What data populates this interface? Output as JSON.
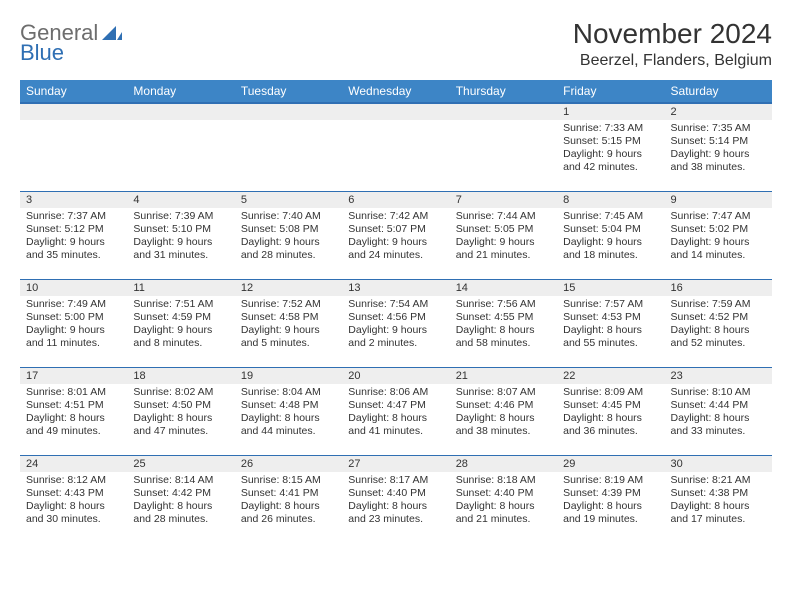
{
  "logo": {
    "text1": "General",
    "text2": "Blue"
  },
  "title": {
    "month": "November 2024",
    "location": "Beerzel, Flanders, Belgium"
  },
  "colors": {
    "header_bg": "#3d85c6",
    "header_border": "#2f6fb3",
    "daynum_bg": "#eeeeee",
    "text": "#333333",
    "logo_gray": "#6d6d6d",
    "logo_blue": "#2f6fb3",
    "page_bg": "#ffffff"
  },
  "weekdays": [
    "Sunday",
    "Monday",
    "Tuesday",
    "Wednesday",
    "Thursday",
    "Friday",
    "Saturday"
  ],
  "weeks": [
    [
      null,
      null,
      null,
      null,
      null,
      {
        "n": "1",
        "sr": "Sunrise: 7:33 AM",
        "ss": "Sunset: 5:15 PM",
        "dl": "Daylight: 9 hours and 42 minutes."
      },
      {
        "n": "2",
        "sr": "Sunrise: 7:35 AM",
        "ss": "Sunset: 5:14 PM",
        "dl": "Daylight: 9 hours and 38 minutes."
      }
    ],
    [
      {
        "n": "3",
        "sr": "Sunrise: 7:37 AM",
        "ss": "Sunset: 5:12 PM",
        "dl": "Daylight: 9 hours and 35 minutes."
      },
      {
        "n": "4",
        "sr": "Sunrise: 7:39 AM",
        "ss": "Sunset: 5:10 PM",
        "dl": "Daylight: 9 hours and 31 minutes."
      },
      {
        "n": "5",
        "sr": "Sunrise: 7:40 AM",
        "ss": "Sunset: 5:08 PM",
        "dl": "Daylight: 9 hours and 28 minutes."
      },
      {
        "n": "6",
        "sr": "Sunrise: 7:42 AM",
        "ss": "Sunset: 5:07 PM",
        "dl": "Daylight: 9 hours and 24 minutes."
      },
      {
        "n": "7",
        "sr": "Sunrise: 7:44 AM",
        "ss": "Sunset: 5:05 PM",
        "dl": "Daylight: 9 hours and 21 minutes."
      },
      {
        "n": "8",
        "sr": "Sunrise: 7:45 AM",
        "ss": "Sunset: 5:04 PM",
        "dl": "Daylight: 9 hours and 18 minutes."
      },
      {
        "n": "9",
        "sr": "Sunrise: 7:47 AM",
        "ss": "Sunset: 5:02 PM",
        "dl": "Daylight: 9 hours and 14 minutes."
      }
    ],
    [
      {
        "n": "10",
        "sr": "Sunrise: 7:49 AM",
        "ss": "Sunset: 5:00 PM",
        "dl": "Daylight: 9 hours and 11 minutes."
      },
      {
        "n": "11",
        "sr": "Sunrise: 7:51 AM",
        "ss": "Sunset: 4:59 PM",
        "dl": "Daylight: 9 hours and 8 minutes."
      },
      {
        "n": "12",
        "sr": "Sunrise: 7:52 AM",
        "ss": "Sunset: 4:58 PM",
        "dl": "Daylight: 9 hours and 5 minutes."
      },
      {
        "n": "13",
        "sr": "Sunrise: 7:54 AM",
        "ss": "Sunset: 4:56 PM",
        "dl": "Daylight: 9 hours and 2 minutes."
      },
      {
        "n": "14",
        "sr": "Sunrise: 7:56 AM",
        "ss": "Sunset: 4:55 PM",
        "dl": "Daylight: 8 hours and 58 minutes."
      },
      {
        "n": "15",
        "sr": "Sunrise: 7:57 AM",
        "ss": "Sunset: 4:53 PM",
        "dl": "Daylight: 8 hours and 55 minutes."
      },
      {
        "n": "16",
        "sr": "Sunrise: 7:59 AM",
        "ss": "Sunset: 4:52 PM",
        "dl": "Daylight: 8 hours and 52 minutes."
      }
    ],
    [
      {
        "n": "17",
        "sr": "Sunrise: 8:01 AM",
        "ss": "Sunset: 4:51 PM",
        "dl": "Daylight: 8 hours and 49 minutes."
      },
      {
        "n": "18",
        "sr": "Sunrise: 8:02 AM",
        "ss": "Sunset: 4:50 PM",
        "dl": "Daylight: 8 hours and 47 minutes."
      },
      {
        "n": "19",
        "sr": "Sunrise: 8:04 AM",
        "ss": "Sunset: 4:48 PM",
        "dl": "Daylight: 8 hours and 44 minutes."
      },
      {
        "n": "20",
        "sr": "Sunrise: 8:06 AM",
        "ss": "Sunset: 4:47 PM",
        "dl": "Daylight: 8 hours and 41 minutes."
      },
      {
        "n": "21",
        "sr": "Sunrise: 8:07 AM",
        "ss": "Sunset: 4:46 PM",
        "dl": "Daylight: 8 hours and 38 minutes."
      },
      {
        "n": "22",
        "sr": "Sunrise: 8:09 AM",
        "ss": "Sunset: 4:45 PM",
        "dl": "Daylight: 8 hours and 36 minutes."
      },
      {
        "n": "23",
        "sr": "Sunrise: 8:10 AM",
        "ss": "Sunset: 4:44 PM",
        "dl": "Daylight: 8 hours and 33 minutes."
      }
    ],
    [
      {
        "n": "24",
        "sr": "Sunrise: 8:12 AM",
        "ss": "Sunset: 4:43 PM",
        "dl": "Daylight: 8 hours and 30 minutes."
      },
      {
        "n": "25",
        "sr": "Sunrise: 8:14 AM",
        "ss": "Sunset: 4:42 PM",
        "dl": "Daylight: 8 hours and 28 minutes."
      },
      {
        "n": "26",
        "sr": "Sunrise: 8:15 AM",
        "ss": "Sunset: 4:41 PM",
        "dl": "Daylight: 8 hours and 26 minutes."
      },
      {
        "n": "27",
        "sr": "Sunrise: 8:17 AM",
        "ss": "Sunset: 4:40 PM",
        "dl": "Daylight: 8 hours and 23 minutes."
      },
      {
        "n": "28",
        "sr": "Sunrise: 8:18 AM",
        "ss": "Sunset: 4:40 PM",
        "dl": "Daylight: 8 hours and 21 minutes."
      },
      {
        "n": "29",
        "sr": "Sunrise: 8:19 AM",
        "ss": "Sunset: 4:39 PM",
        "dl": "Daylight: 8 hours and 19 minutes."
      },
      {
        "n": "30",
        "sr": "Sunrise: 8:21 AM",
        "ss": "Sunset: 4:38 PM",
        "dl": "Daylight: 8 hours and 17 minutes."
      }
    ]
  ]
}
